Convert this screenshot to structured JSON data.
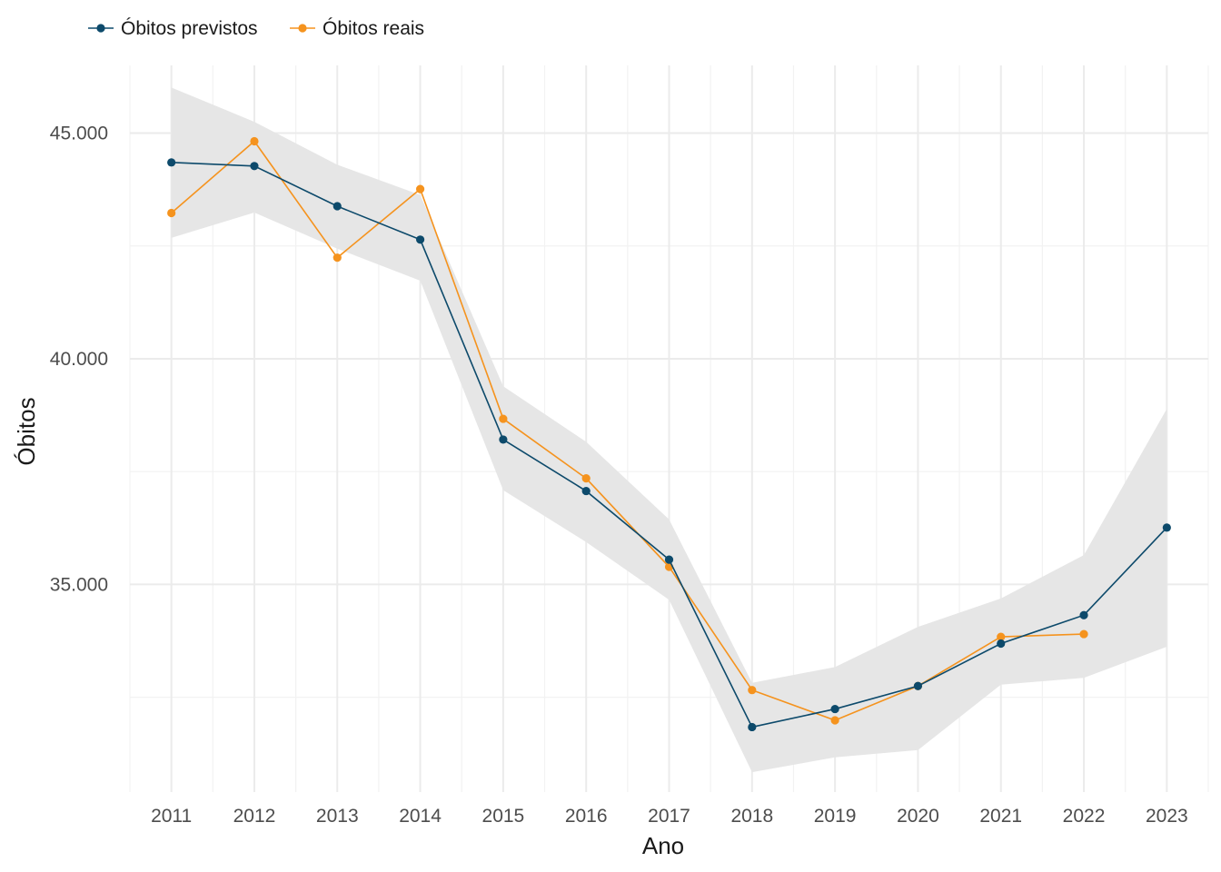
{
  "chart_data": {
    "type": "line",
    "title": "",
    "xlabel": "Ano",
    "ylabel": "Óbitos",
    "x": [
      2011,
      2012,
      2013,
      2014,
      2015,
      2016,
      2017,
      2018,
      2019,
      2020,
      2021,
      2022,
      2023
    ],
    "x_tick_labels": [
      "2011",
      "2012",
      "2013",
      "2014",
      "2015",
      "2016",
      "2017",
      "2018",
      "2019",
      "2020",
      "2021",
      "2022",
      "2023"
    ],
    "y_ticks": [
      35000,
      40000,
      45000
    ],
    "y_tick_labels": [
      "35.000",
      "40.000",
      "45.000"
    ],
    "ylim": [
      30400,
      46500
    ],
    "grid": true,
    "legend_position": "top-left",
    "series": [
      {
        "name": "Óbitos previstos",
        "color": "#0d4a6b",
        "values": [
          44350,
          44270,
          43380,
          42640,
          38210,
          37070,
          35550,
          31840,
          32240,
          32750,
          33690,
          34320,
          36260
        ]
      },
      {
        "name": "Óbitos reais",
        "color": "#f5931e",
        "values": [
          43230,
          44820,
          42240,
          43760,
          38670,
          37350,
          35390,
          32660,
          31990,
          32750,
          33840,
          33900,
          null
        ]
      }
    ],
    "confidence_band": {
      "color": "#e6e6e6",
      "lower": [
        42680,
        43240,
        42440,
        41730,
        37090,
        35940,
        34660,
        30840,
        31170,
        31330,
        32780,
        32930,
        33620
      ],
      "upper": [
        46010,
        45250,
        44300,
        43630,
        39390,
        38160,
        36440,
        32820,
        33170,
        34060,
        34690,
        35650,
        38890
      ]
    }
  }
}
